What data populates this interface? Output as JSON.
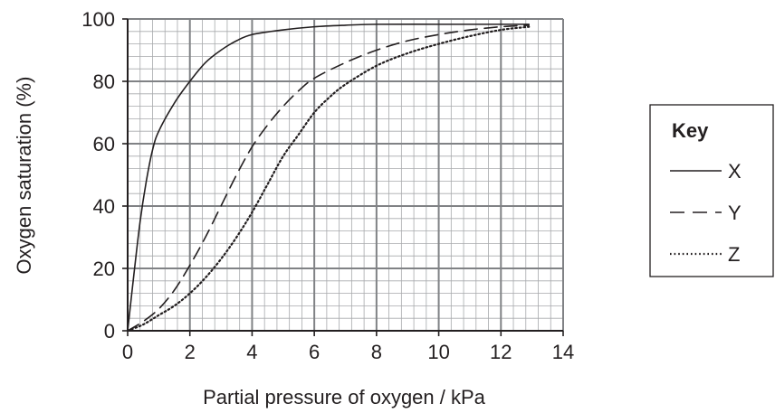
{
  "chart_data": {
    "type": "line",
    "xlabel": "Partial pressure of oxygen / kPa",
    "ylabel": "Oxygen saturation (%)",
    "xlim": [
      0,
      14
    ],
    "ylim": [
      0,
      100
    ],
    "x_ticks": [
      "0",
      "2",
      "4",
      "6",
      "8",
      "10",
      "12",
      "14"
    ],
    "y_ticks": [
      "0",
      "20",
      "40",
      "60",
      "80",
      "100"
    ],
    "grid": {
      "major": [
        2,
        20
      ],
      "minor": [
        0.4,
        4
      ]
    },
    "legend": {
      "title": "Key",
      "placement": "right"
    },
    "series": [
      {
        "name": "X",
        "style": "solid",
        "points": [
          [
            0,
            0
          ],
          [
            0.2,
            18
          ],
          [
            0.4,
            35
          ],
          [
            0.6,
            48
          ],
          [
            0.8,
            58
          ],
          [
            1.0,
            64
          ],
          [
            1.5,
            73
          ],
          [
            2.0,
            80
          ],
          [
            2.5,
            86
          ],
          [
            3.0,
            90
          ],
          [
            3.5,
            93
          ],
          [
            4.0,
            95
          ],
          [
            5.0,
            96.5
          ],
          [
            6.0,
            97.5
          ],
          [
            7.0,
            98
          ],
          [
            8.0,
            98.3
          ],
          [
            10.0,
            98.3
          ],
          [
            12.0,
            98.3
          ],
          [
            12.9,
            98.3
          ]
        ]
      },
      {
        "name": "Y",
        "style": "dashed",
        "points": [
          [
            0,
            0
          ],
          [
            0.5,
            3
          ],
          [
            1.0,
            7
          ],
          [
            1.5,
            13
          ],
          [
            2.0,
            21
          ],
          [
            2.5,
            30
          ],
          [
            3.0,
            40
          ],
          [
            3.5,
            50
          ],
          [
            4.0,
            59
          ],
          [
            4.5,
            66
          ],
          [
            5.0,
            72
          ],
          [
            5.5,
            77
          ],
          [
            6.0,
            81
          ],
          [
            7.0,
            86
          ],
          [
            8.0,
            90
          ],
          [
            9.0,
            93
          ],
          [
            10.0,
            95
          ],
          [
            11.0,
            96.5
          ],
          [
            12.0,
            97.5
          ],
          [
            12.9,
            98
          ]
        ]
      },
      {
        "name": "Z",
        "style": "dotted",
        "points": [
          [
            0,
            0
          ],
          [
            0.5,
            2
          ],
          [
            1.0,
            5
          ],
          [
            1.5,
            8
          ],
          [
            2.0,
            12
          ],
          [
            2.5,
            17
          ],
          [
            3.0,
            23
          ],
          [
            3.5,
            30
          ],
          [
            4.0,
            38
          ],
          [
            4.5,
            47
          ],
          [
            5.0,
            56
          ],
          [
            5.5,
            63
          ],
          [
            6.0,
            70
          ],
          [
            6.5,
            75
          ],
          [
            7.0,
            79
          ],
          [
            8.0,
            85
          ],
          [
            9.0,
            89
          ],
          [
            10.0,
            92
          ],
          [
            11.0,
            94.5
          ],
          [
            12.0,
            96.5
          ],
          [
            12.9,
            97.5
          ]
        ]
      }
    ]
  }
}
